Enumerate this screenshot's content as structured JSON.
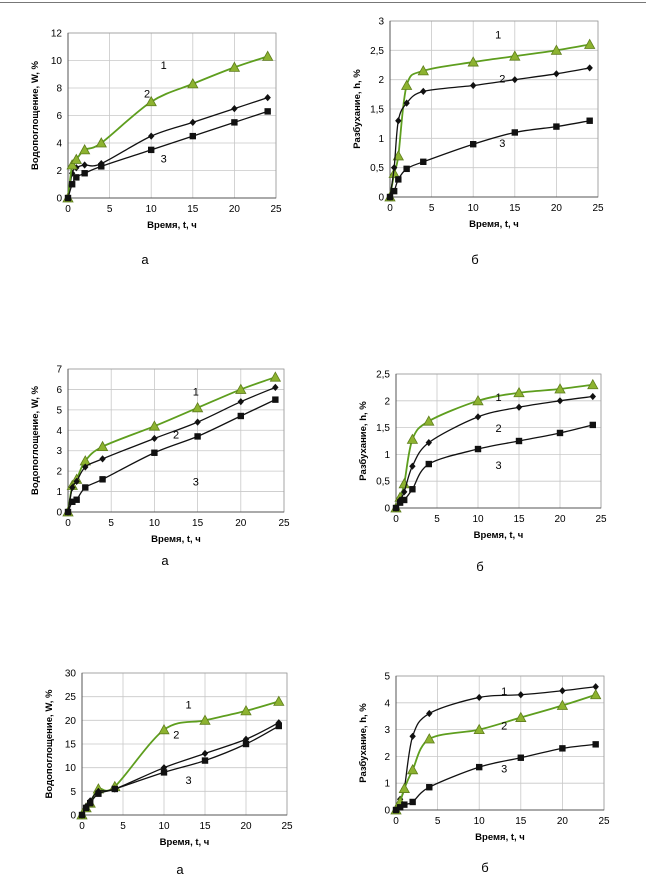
{
  "chart_data": [
    {
      "type": "line",
      "ylabel": "Водопоглощение, W, %",
      "xlabel": "Время, t, ч",
      "caption": "а",
      "xlim": [
        0,
        25
      ],
      "xticks": [
        0,
        5,
        10,
        15,
        20,
        25
      ],
      "ylim": [
        0,
        12
      ],
      "yticks": [
        0,
        2,
        4,
        6,
        8,
        10,
        12
      ],
      "grid": true,
      "series": [
        {
          "marker": "diamond",
          "x": [
            0,
            0.5,
            1,
            2,
            4,
            10,
            15,
            20,
            24
          ],
          "y": [
            0,
            1.8,
            2.2,
            2.4,
            2.5,
            4.5,
            5.5,
            6.5,
            7.3
          ]
        },
        {
          "marker": "triangle",
          "x": [
            0,
            0.5,
            1,
            2,
            4,
            10,
            15,
            20,
            24
          ],
          "y": [
            0,
            2.4,
            2.8,
            3.5,
            4.0,
            7.0,
            8.3,
            9.5,
            10.3
          ]
        },
        {
          "marker": "square",
          "x": [
            0,
            0.5,
            1,
            2,
            4,
            10,
            15,
            20,
            24
          ],
          "y": [
            0,
            1.0,
            1.5,
            1.8,
            2.3,
            3.5,
            4.5,
            5.5,
            6.3
          ]
        }
      ],
      "curve_labels": [
        {
          "text": "1",
          "x": 11.5,
          "y": 9.4
        },
        {
          "text": "2",
          "x": 9.5,
          "y": 7.3
        },
        {
          "text": "3",
          "x": 11.5,
          "y": 2.6
        }
      ]
    },
    {
      "type": "line",
      "ylabel": "Разбухание, h, %",
      "xlabel": "Время, t, ч",
      "caption": "б",
      "xlim": [
        0,
        25
      ],
      "xticks": [
        0,
        5,
        10,
        15,
        20,
        25
      ],
      "ylim": [
        0,
        3
      ],
      "yticks": [
        0,
        0.5,
        1,
        1.5,
        2,
        2.5,
        3
      ],
      "yticklabels": [
        "0",
        "0,5",
        "1",
        "1,5",
        "2",
        "2,5",
        "3"
      ],
      "grid": true,
      "series": [
        {
          "marker": "triangle",
          "x": [
            0,
            0.5,
            1,
            2,
            4,
            10,
            15,
            20,
            24
          ],
          "y": [
            0,
            0.4,
            0.7,
            1.9,
            2.15,
            2.3,
            2.4,
            2.5,
            2.6
          ]
        },
        {
          "marker": "diamond",
          "x": [
            0,
            0.5,
            1,
            2,
            4,
            10,
            15,
            20,
            24
          ],
          "y": [
            0,
            0.5,
            1.3,
            1.6,
            1.8,
            1.9,
            2.0,
            2.1,
            2.2
          ]
        },
        {
          "marker": "square",
          "x": [
            0,
            0.5,
            1,
            2,
            4,
            10,
            15,
            20,
            24
          ],
          "y": [
            0,
            0.1,
            0.3,
            0.48,
            0.6,
            0.9,
            1.1,
            1.2,
            1.3
          ]
        }
      ],
      "curve_labels": [
        {
          "text": "1",
          "x": 13,
          "y": 2.7
        },
        {
          "text": "2",
          "x": 13.5,
          "y": 1.95
        },
        {
          "text": "3",
          "x": 13.5,
          "y": 0.85
        }
      ]
    },
    {
      "type": "line",
      "ylabel": "Водопоглощение, W, %",
      "xlabel": "Время, t, ч",
      "caption": "а",
      "xlim": [
        0,
        25
      ],
      "xticks": [
        0,
        5,
        10,
        15,
        20,
        25
      ],
      "ylim": [
        0,
        7
      ],
      "yticks": [
        0,
        1,
        2,
        3,
        4,
        5,
        6,
        7
      ],
      "grid": true,
      "series": [
        {
          "marker": "triangle",
          "x": [
            0,
            0.5,
            1,
            2,
            4,
            10,
            15,
            20,
            24
          ],
          "y": [
            0,
            1.3,
            1.6,
            2.5,
            3.2,
            4.2,
            5.1,
            6.0,
            6.6
          ]
        },
        {
          "marker": "diamond",
          "x": [
            0,
            0.5,
            1,
            2,
            4,
            10,
            15,
            20,
            24
          ],
          "y": [
            0,
            1.2,
            1.5,
            2.2,
            2.6,
            3.6,
            4.4,
            5.4,
            6.1
          ]
        },
        {
          "marker": "square",
          "x": [
            0,
            0.5,
            1,
            2,
            4,
            10,
            15,
            20,
            24
          ],
          "y": [
            0,
            0.5,
            0.6,
            1.2,
            1.6,
            2.9,
            3.7,
            4.7,
            5.5
          ]
        }
      ],
      "curve_labels": [
        {
          "text": "1",
          "x": 14.8,
          "y": 5.7
        },
        {
          "text": "2",
          "x": 12.5,
          "y": 3.6
        },
        {
          "text": "3",
          "x": 14.8,
          "y": 1.3
        }
      ]
    },
    {
      "type": "line",
      "ylabel": "Разбухание, h, %",
      "xlabel": "Время, t, ч",
      "caption": "б",
      "xlim": [
        0,
        25
      ],
      "xticks": [
        0,
        5,
        10,
        15,
        20,
        25
      ],
      "ylim": [
        0,
        2.5
      ],
      "yticks": [
        0,
        0.5,
        1,
        1.5,
        2,
        2.5
      ],
      "yticklabels": [
        "0",
        "0,5",
        "1",
        "1,5",
        "2",
        "2,5"
      ],
      "grid": true,
      "series": [
        {
          "marker": "triangle",
          "x": [
            0,
            0.5,
            1,
            2,
            4,
            10,
            15,
            20,
            24
          ],
          "y": [
            0,
            0.2,
            0.45,
            1.28,
            1.62,
            2.0,
            2.15,
            2.22,
            2.3
          ]
        },
        {
          "marker": "diamond",
          "x": [
            0,
            0.5,
            1,
            2,
            4,
            10,
            15,
            20,
            24
          ],
          "y": [
            0,
            0.15,
            0.3,
            0.78,
            1.22,
            1.7,
            1.88,
            2.0,
            2.08
          ]
        },
        {
          "marker": "square",
          "x": [
            0,
            0.5,
            1,
            2,
            4,
            10,
            15,
            20,
            24
          ],
          "y": [
            0,
            0.1,
            0.15,
            0.35,
            0.82,
            1.1,
            1.25,
            1.4,
            1.55
          ]
        }
      ],
      "curve_labels": [
        {
          "text": "1",
          "x": 12.5,
          "y": 2.0
        },
        {
          "text": "2",
          "x": 12.5,
          "y": 1.42
        },
        {
          "text": "3",
          "x": 12.5,
          "y": 0.73
        }
      ]
    },
    {
      "type": "line",
      "ylabel": "Водопоглощение, W, %",
      "xlabel": "Время, t, ч",
      "caption": "а",
      "xlim": [
        0,
        25
      ],
      "xticks": [
        0,
        5,
        10,
        15,
        20,
        25
      ],
      "ylim": [
        0,
        30
      ],
      "yticks": [
        0,
        5,
        10,
        15,
        20,
        25,
        30
      ],
      "grid": true,
      "series": [
        {
          "marker": "triangle",
          "x": [
            0,
            0.5,
            1,
            2,
            4,
            10,
            15,
            20,
            24
          ],
          "y": [
            0,
            1.5,
            2.5,
            5.5,
            6.0,
            18.0,
            20.0,
            22.0,
            24.0
          ]
        },
        {
          "marker": "diamond",
          "x": [
            0,
            0.5,
            1,
            2,
            4,
            10,
            15,
            20,
            24
          ],
          "y": [
            0,
            1.8,
            3.0,
            5.0,
            5.5,
            10.0,
            13.0,
            16.0,
            19.5
          ]
        },
        {
          "marker": "square",
          "x": [
            0,
            0.5,
            1,
            2,
            4,
            10,
            15,
            20,
            24
          ],
          "y": [
            0,
            1.5,
            2.5,
            4.5,
            5.5,
            9.0,
            11.5,
            15.0,
            18.8
          ]
        }
      ],
      "curve_labels": [
        {
          "text": "1",
          "x": 13,
          "y": 22.5
        },
        {
          "text": "2",
          "x": 11.5,
          "y": 16.2
        },
        {
          "text": "3",
          "x": 13,
          "y": 6.5
        }
      ]
    },
    {
      "type": "line",
      "ylabel": "Разбухание, h, %",
      "xlabel": "Время, t, ч",
      "caption": "б",
      "xlim": [
        0,
        25
      ],
      "xticks": [
        0,
        5,
        10,
        15,
        20,
        25
      ],
      "ylim": [
        0,
        5
      ],
      "yticks": [
        0,
        1,
        2,
        3,
        4,
        5
      ],
      "grid": true,
      "series": [
        {
          "marker": "diamond",
          "x": [
            0,
            0.5,
            1,
            2,
            4,
            10,
            15,
            20,
            24
          ],
          "y": [
            0,
            0.4,
            0.8,
            2.75,
            3.6,
            4.2,
            4.3,
            4.45,
            4.6
          ]
        },
        {
          "marker": "triangle",
          "x": [
            0,
            0.5,
            1,
            2,
            4,
            10,
            15,
            20,
            24
          ],
          "y": [
            0,
            0.3,
            0.8,
            1.5,
            2.65,
            3.0,
            3.45,
            3.9,
            4.3
          ]
        },
        {
          "marker": "square",
          "x": [
            0,
            0.5,
            1,
            2,
            4,
            10,
            15,
            20,
            24
          ],
          "y": [
            0,
            0.1,
            0.2,
            0.3,
            0.85,
            1.6,
            1.95,
            2.3,
            2.45
          ]
        }
      ],
      "curve_labels": [
        {
          "text": "1",
          "x": 13,
          "y": 4.3
        },
        {
          "text": "2",
          "x": 13,
          "y": 3.0
        },
        {
          "text": "3",
          "x": 13,
          "y": 1.4
        }
      ]
    }
  ]
}
